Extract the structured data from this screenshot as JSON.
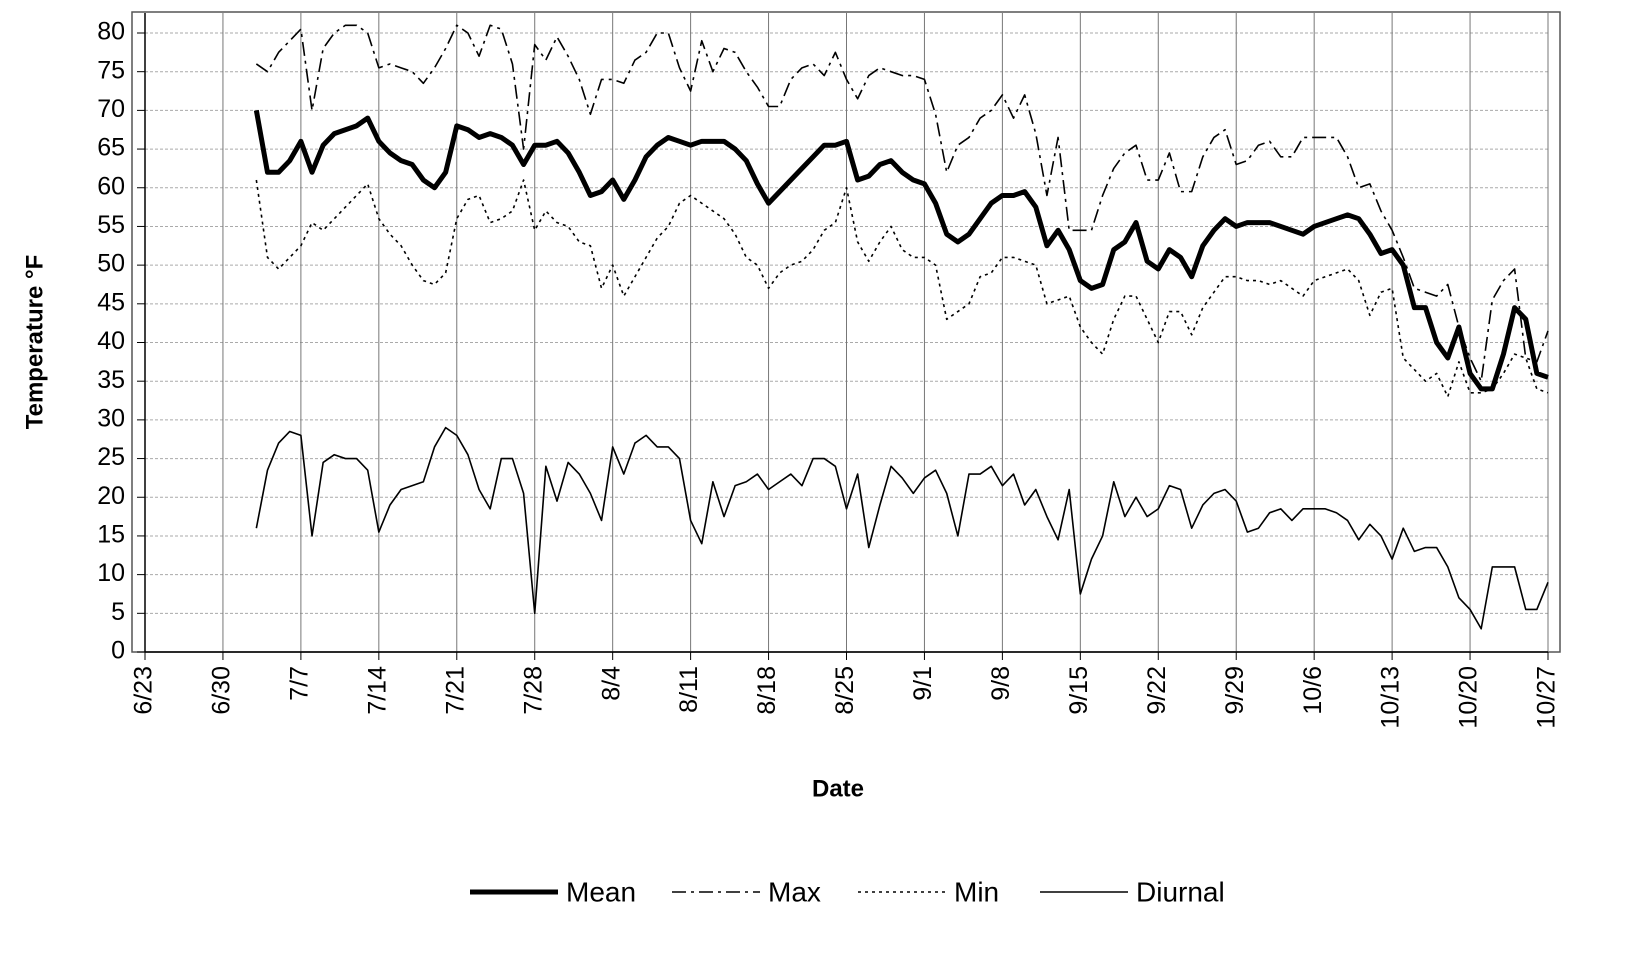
{
  "chart_data": {
    "type": "line",
    "y_label": "Temperature °F",
    "x_label": "Date",
    "xlim": [
      0,
      126
    ],
    "ylim": [
      0,
      80
    ],
    "xticks": [
      {
        "value": 0,
        "label": "6/23"
      },
      {
        "value": 7,
        "label": "6/30"
      },
      {
        "value": 14,
        "label": "7/7"
      },
      {
        "value": 21,
        "label": "7/14"
      },
      {
        "value": 28,
        "label": "7/21"
      },
      {
        "value": 35,
        "label": "7/28"
      },
      {
        "value": 42,
        "label": "8/4"
      },
      {
        "value": 49,
        "label": "8/11"
      },
      {
        "value": 56,
        "label": "8/18"
      },
      {
        "value": 63,
        "label": "8/25"
      },
      {
        "value": 70,
        "label": "9/1"
      },
      {
        "value": 77,
        "label": "9/8"
      },
      {
        "value": 84,
        "label": "9/15"
      },
      {
        "value": 91,
        "label": "9/22"
      },
      {
        "value": 98,
        "label": "9/29"
      },
      {
        "value": 105,
        "label": "10/6"
      },
      {
        "value": 112,
        "label": "10/13"
      },
      {
        "value": 119,
        "label": "10/20"
      },
      {
        "value": 126,
        "label": "10/27"
      }
    ],
    "yticks": [
      0,
      5,
      10,
      15,
      20,
      25,
      30,
      35,
      40,
      45,
      50,
      55,
      60,
      65,
      70,
      75,
      80
    ],
    "grid": true,
    "legend": "bottom",
    "x": [
      10,
      11,
      12,
      13,
      14,
      15,
      16,
      17,
      18,
      19,
      20,
      21,
      22,
      23,
      24,
      25,
      26,
      27,
      28,
      29,
      30,
      31,
      32,
      33,
      34,
      35,
      36,
      37,
      38,
      39,
      40,
      41,
      42,
      43,
      44,
      45,
      46,
      47,
      48,
      49,
      50,
      51,
      52,
      53,
      54,
      55,
      56,
      57,
      58,
      59,
      60,
      61,
      62,
      63,
      64,
      65,
      66,
      67,
      68,
      69,
      70,
      71,
      72,
      73,
      74,
      75,
      76,
      77,
      78,
      79,
      80,
      81,
      82,
      83,
      84,
      85,
      86,
      87,
      88,
      89,
      90,
      91,
      92,
      93,
      94,
      95,
      96,
      97,
      98,
      99,
      100,
      101,
      102,
      103,
      104,
      105,
      106,
      107,
      108,
      109,
      110,
      111,
      112,
      113,
      114,
      115,
      116,
      117,
      118,
      119,
      120,
      121,
      122,
      123,
      124,
      125,
      126
    ],
    "series": [
      {
        "name": "Mean",
        "color": "#000000",
        "line_style": "bold",
        "values": [
          70,
          62,
          62,
          63.5,
          66,
          62,
          65.5,
          67,
          67.5,
          68,
          69,
          66,
          64.5,
          63.5,
          63,
          61,
          60,
          62,
          68,
          67.5,
          66.5,
          67,
          66.5,
          65.5,
          63,
          65.5,
          65.5,
          66,
          64.5,
          62,
          59,
          59.5,
          61,
          58.5,
          61,
          64,
          65.5,
          66.5,
          66,
          65.5,
          66,
          66,
          66,
          65,
          63.5,
          60.5,
          58,
          59.5,
          61,
          62.5,
          64,
          65.5,
          65.5,
          66,
          61,
          61.5,
          63,
          63.5,
          62,
          61,
          60.5,
          58,
          54,
          53,
          54,
          56,
          58,
          59,
          59,
          59.5,
          57.5,
          52.5,
          54.5,
          52,
          48,
          47,
          47.5,
          52,
          53,
          55.5,
          50.5,
          49.5,
          52,
          51,
          48.5,
          52.5,
          54.5,
          56,
          55,
          55.5,
          55.5,
          55.5,
          55,
          54.5,
          54,
          55,
          55.5,
          56,
          56.5,
          56,
          54,
          51.5,
          52,
          50,
          44.5,
          44.5,
          40,
          38,
          42,
          36,
          34,
          34,
          38.5,
          44.5,
          43,
          36,
          35.5
        ]
      },
      {
        "name": "Max",
        "color": "#000000",
        "line_style": "dashdot",
        "values": [
          76,
          75,
          77.5,
          79,
          80.5,
          70,
          78,
          80,
          81,
          81,
          80,
          75.5,
          76,
          75.5,
          75,
          73.5,
          75.5,
          78,
          81,
          80,
          77,
          81,
          80.5,
          76,
          65,
          78.5,
          76.5,
          79.5,
          77,
          74,
          69.5,
          74,
          74,
          73.5,
          76.5,
          77.5,
          80,
          80,
          75.5,
          72.5,
          79,
          75,
          78,
          77.5,
          75,
          73,
          70.5,
          70.5,
          74,
          75.5,
          76,
          74.5,
          77.5,
          74,
          71.5,
          74.5,
          75.5,
          75,
          74.5,
          74.5,
          74,
          69.5,
          62,
          65.5,
          66.5,
          69,
          70,
          72,
          69,
          72,
          67,
          59,
          66.5,
          54.5,
          54.5,
          54.5,
          59,
          62.5,
          64.5,
          65.5,
          61,
          61,
          64.5,
          59.5,
          59.5,
          64,
          66.5,
          67.5,
          63,
          63.5,
          65.5,
          66,
          64,
          64,
          66.5,
          66.5,
          66.5,
          66.5,
          64,
          60,
          60.5,
          57,
          54.5,
          51,
          47,
          46.5,
          46,
          47.5,
          42,
          38,
          35,
          45.5,
          48,
          49.5,
          38,
          37.5,
          41.5
        ]
      },
      {
        "name": "Min",
        "color": "#000000",
        "line_style": "dotted",
        "values": [
          61,
          51,
          49.5,
          51,
          52.5,
          55.5,
          54.5,
          56,
          57.5,
          59,
          60.5,
          56,
          54,
          52.5,
          50,
          48,
          47.5,
          49,
          56,
          58.5,
          59,
          55.5,
          56,
          57,
          61,
          54.5,
          57,
          55.5,
          55,
          53,
          52.5,
          47,
          50,
          46,
          48.5,
          51,
          53.5,
          55,
          58,
          59,
          58,
          57,
          56,
          54,
          51,
          50,
          47,
          49,
          50,
          50.5,
          52,
          54.5,
          55.5,
          60,
          53,
          50.5,
          53,
          55,
          52,
          51,
          51,
          50,
          43,
          44,
          45,
          48.5,
          49,
          51,
          51,
          50.5,
          50,
          45,
          45.5,
          46,
          42,
          40,
          38.5,
          43,
          46,
          46,
          43,
          40,
          44,
          44,
          41,
          44.5,
          46.5,
          48.5,
          48.5,
          48,
          48,
          47.5,
          48,
          47,
          46,
          48,
          48.5,
          49,
          49.5,
          48,
          43.5,
          46.5,
          47,
          38,
          36.5,
          35,
          36,
          33,
          37.5,
          33.5,
          33.5,
          34,
          36,
          38.5,
          38,
          34,
          33.5
        ]
      },
      {
        "name": "Diurnal",
        "color": "#000000",
        "line_style": "thin",
        "values": [
          16,
          23.5,
          27,
          28.5,
          28,
          15,
          24.5,
          25.5,
          25,
          25,
          23.5,
          15.5,
          19,
          21,
          21.5,
          22,
          26.5,
          29,
          28,
          25.5,
          21,
          18.5,
          25,
          25,
          20.5,
          5,
          24,
          19.5,
          24.5,
          23,
          20.5,
          17,
          26.5,
          23,
          27,
          28,
          26.5,
          26.5,
          25,
          17,
          14,
          22,
          17.5,
          21.5,
          22,
          23,
          21,
          22,
          23,
          21.5,
          25,
          25,
          24,
          18.5,
          23,
          13.5,
          19,
          24,
          22.5,
          20.5,
          22.5,
          23.5,
          20.5,
          15,
          23,
          23,
          24,
          21.5,
          23,
          19,
          21,
          17.5,
          14.5,
          21,
          7.5,
          12,
          15,
          22,
          17.5,
          20,
          17.5,
          18.5,
          21.5,
          21,
          16,
          19,
          20.5,
          21,
          19.5,
          15.5,
          16,
          18,
          18.5,
          17,
          18.5,
          18.5,
          18.5,
          18,
          17,
          14.5,
          16.5,
          15,
          12,
          16,
          13,
          13.5,
          13.5,
          11,
          7,
          5.5,
          3,
          11,
          11,
          11,
          5.5,
          5.5,
          9
        ]
      }
    ]
  }
}
